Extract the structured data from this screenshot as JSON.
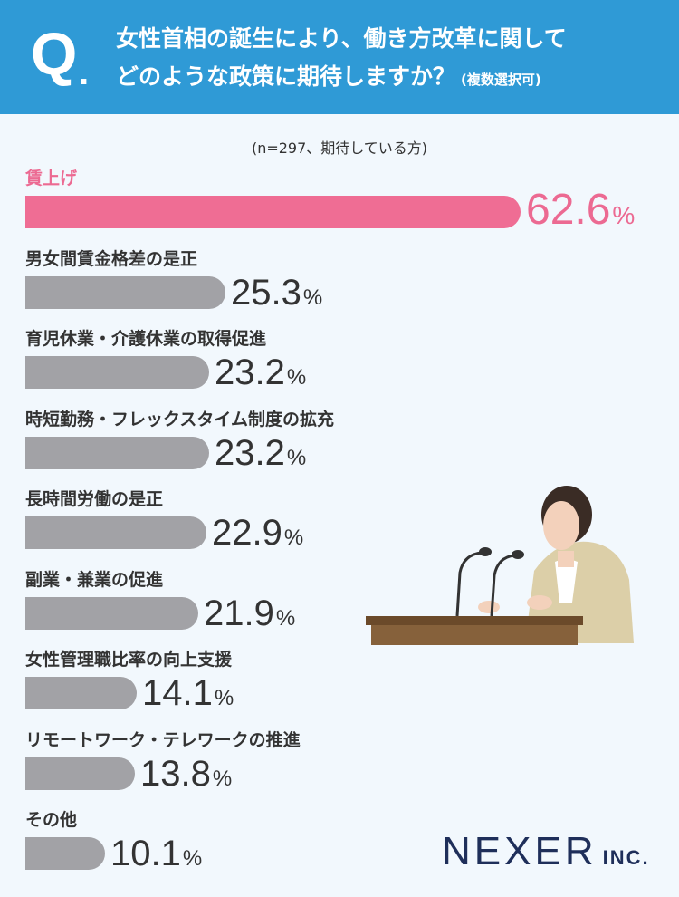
{
  "question": {
    "letter": "Q",
    "dot": ".",
    "line1": "女性首相の誕生により、働き方改革に関して",
    "line2": "どのような政策に期待しますか？",
    "note": "(複数選択可)"
  },
  "sample_note": "(n=297、期待している方)",
  "colors": {
    "header": "#2f9ad6",
    "highlight": "#ef6d94",
    "bar": "#a2a2a6",
    "background": "#f2f8fd"
  },
  "chart_data": {
    "type": "bar",
    "orientation": "horizontal",
    "title": "",
    "unit": "%",
    "categories": [
      "賃上げ",
      "男女間賃金格差の是正",
      "育児休業・介護休業の取得促進",
      "時短勤務・フレックスタイム制度の拡充",
      "長時間労働の是正",
      "副業・兼業の促進",
      "女性管理職比率の向上支援",
      "リモートワーク・テレワークの推進",
      "その他"
    ],
    "values": [
      62.6,
      25.3,
      23.2,
      23.2,
      22.9,
      21.9,
      14.1,
      13.8,
      10.1
    ],
    "value_labels": [
      "62.6",
      "25.3",
      "23.2",
      "23.2",
      "22.9",
      "21.9",
      "14.1",
      "13.8",
      "10.1"
    ],
    "highlight_index": 0
  },
  "logo": {
    "main": "NEXER",
    "suffix": "INC."
  }
}
